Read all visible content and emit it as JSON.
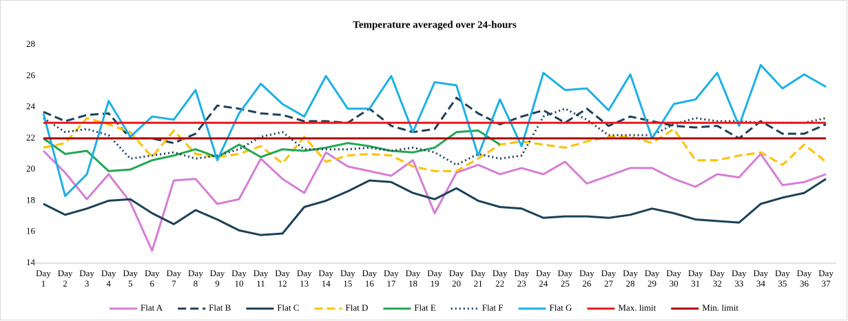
{
  "chart_data": {
    "type": "line",
    "title": "Temperature averaged over 24-hours",
    "categories": [
      "Day 1",
      "Day 2",
      "Day 3",
      "Day 4",
      "Day 5",
      "Day 6",
      "Day 7",
      "Day 8",
      "Day 9",
      "Day 10",
      "Day 11",
      "Day 12",
      "Day 13",
      "Day 14",
      "Day 15",
      "Day 16",
      "Day 17",
      "Day 18",
      "Day 19",
      "Day 20",
      "Day 21",
      "Day 22",
      "Day 23",
      "Day 24",
      "Day 25",
      "Day 26",
      "Day 27",
      "Day 28",
      "Day 29",
      "Day 30",
      "Day 31",
      "Day 32",
      "Day 33",
      "Day 34",
      "Day 35",
      "Day 36",
      "Day 37"
    ],
    "ylim": [
      14,
      28
    ],
    "yticks": [
      14,
      16,
      18,
      20,
      22,
      24,
      26,
      28
    ],
    "grid": false,
    "legend": "bottom",
    "series": [
      {
        "name": "Flat A",
        "color": "#d67dd6",
        "line_style": "solid",
        "values": [
          21.2,
          19.8,
          18.1,
          19.7,
          17.9,
          14.8,
          19.3,
          19.4,
          17.8,
          18.1,
          20.7,
          19.4,
          18.5,
          21.1,
          20.2,
          19.9,
          19.6,
          20.6,
          17.2,
          19.8,
          20.3,
          19.7,
          20.1,
          19.7,
          20.5,
          19.1,
          19.6,
          20.1,
          20.1,
          19.4,
          18.9,
          19.7,
          19.5,
          21.0,
          19.0,
          19.2,
          19.7
        ]
      },
      {
        "name": "Flat B",
        "color": "#1f3e5a",
        "line_style": "dashed",
        "values": [
          23.7,
          23.1,
          23.5,
          23.6,
          22.0,
          22.0,
          21.7,
          22.3,
          24.1,
          23.9,
          23.6,
          23.5,
          23.1,
          23.1,
          23.0,
          23.9,
          22.8,
          22.4,
          22.6,
          24.6,
          23.6,
          22.9,
          23.4,
          23.8,
          23.0,
          23.9,
          22.8,
          23.4,
          23.1,
          22.8,
          22.7,
          22.8,
          22.0,
          23.1,
          22.3,
          22.3,
          22.9
        ]
      },
      {
        "name": "Flat C",
        "color": "#1b4157",
        "line_style": "solid",
        "values": [
          17.8,
          17.1,
          17.5,
          18.0,
          18.1,
          17.2,
          16.5,
          17.4,
          16.8,
          16.1,
          15.8,
          15.9,
          17.6,
          18.0,
          18.6,
          19.3,
          19.2,
          18.5,
          18.1,
          18.8,
          18.0,
          17.6,
          17.5,
          16.9,
          17.0,
          17.0,
          16.9,
          17.1,
          17.5,
          17.2,
          16.8,
          16.7,
          16.6,
          17.8,
          18.2,
          18.5,
          19.4
        ]
      },
      {
        "name": "Flat D",
        "color": "#ffc000",
        "line_style": "dashed",
        "values": [
          21.4,
          21.7,
          23.3,
          22.9,
          22.4,
          20.8,
          22.5,
          21.0,
          20.8,
          21.0,
          21.5,
          20.4,
          22.1,
          20.5,
          20.9,
          21.0,
          20.9,
          20.2,
          19.9,
          19.9,
          20.7,
          21.6,
          21.8,
          21.6,
          21.4,
          21.8,
          22.1,
          22.1,
          21.7,
          22.6,
          20.6,
          20.6,
          20.9,
          21.1,
          20.3,
          21.6,
          20.5
        ]
      },
      {
        "name": "Flat E",
        "color": "#21a752",
        "line_style": "solid",
        "values": [
          22.0,
          21.0,
          21.2,
          19.9,
          20.0,
          20.6,
          20.9,
          21.3,
          20.8,
          21.6,
          20.8,
          21.3,
          21.2,
          21.4,
          21.7,
          21.5,
          21.2,
          21.1,
          21.4,
          22.4,
          22.5,
          21.6,
          null,
          null,
          null,
          null,
          null,
          null,
          null,
          null,
          null,
          null,
          null,
          null,
          null,
          null,
          null
        ]
      },
      {
        "name": "Flat F",
        "color": "#1f3e5a",
        "line_style": "dotted",
        "values": [
          23.3,
          22.4,
          22.6,
          22.2,
          20.7,
          20.9,
          21.1,
          20.7,
          20.9,
          21.3,
          22.1,
          22.4,
          21.3,
          21.3,
          21.3,
          21.4,
          21.2,
          21.4,
          21.1,
          20.3,
          21.0,
          20.7,
          20.9,
          23.4,
          23.9,
          23.2,
          22.2,
          22.2,
          22.2,
          22.9,
          23.3,
          23.1,
          23.1,
          23.0,
          23.0,
          23.0,
          23.3
        ]
      },
      {
        "name": "Flat G",
        "color": "#1cb0e6",
        "line_style": "solid",
        "values": [
          23.6,
          18.3,
          19.7,
          24.4,
          22.1,
          23.4,
          23.2,
          25.1,
          20.6,
          23.6,
          25.5,
          24.2,
          23.4,
          26.0,
          23.9,
          23.9,
          26.0,
          22.4,
          25.6,
          25.4,
          20.9,
          24.5,
          21.5,
          26.2,
          25.1,
          25.2,
          23.8,
          26.1,
          22.0,
          24.2,
          24.5,
          26.2,
          22.8,
          26.7,
          25.2,
          26.1,
          25.3
        ]
      },
      {
        "name": "Max. limit",
        "color": "#e8171c",
        "line_style": "solid",
        "values": [
          23,
          23,
          23,
          23,
          23,
          23,
          23,
          23,
          23,
          23,
          23,
          23,
          23,
          23,
          23,
          23,
          23,
          23,
          23,
          23,
          23,
          23,
          23,
          23,
          23,
          23,
          23,
          23,
          23,
          23,
          23,
          23,
          23,
          23,
          23,
          23,
          23
        ]
      },
      {
        "name": "Min. limit",
        "color": "#b00000",
        "line_style": "solid",
        "values": [
          22,
          22,
          22,
          22,
          22,
          22,
          22,
          22,
          22,
          22,
          22,
          22,
          22,
          22,
          22,
          22,
          22,
          22,
          22,
          22,
          22,
          22,
          22,
          22,
          22,
          22,
          22,
          22,
          22,
          22,
          22,
          22,
          22,
          22,
          22,
          22,
          22
        ]
      }
    ]
  }
}
